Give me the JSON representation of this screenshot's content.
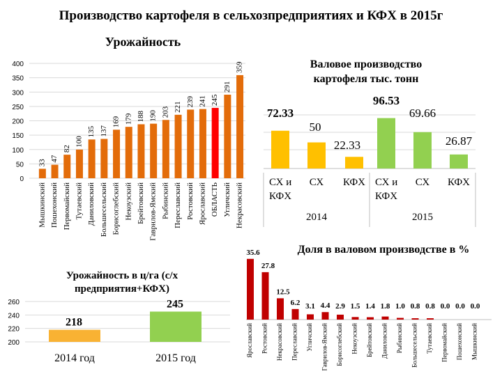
{
  "header": {
    "title": "Производство картофеля в сельхозпредприятиях и КФХ в 2015г",
    "subtitle": "Урожайность"
  },
  "colors": {
    "orange": "#E36C0A",
    "red": "#FF0000",
    "yellow": "#FFC000",
    "orange_light": "#F9B233",
    "green": "#92D050",
    "dark_red": "#C00000",
    "grid": "#D9D9D9"
  },
  "charts": {
    "gross_title": "Валовое производство картофеля тыс. тонн",
    "share_title": "Доля в валовом производстве в %",
    "yield_title": "Урожайность в ц/га (с/х предприятия+КФХ)"
  },
  "chart_data": [
    {
      "id": "yield_by_district",
      "type": "bar",
      "title": "Урожайность",
      "ylim": [
        0,
        400
      ],
      "yticks": [
        0,
        50,
        100,
        150,
        200,
        250,
        300,
        350,
        400
      ],
      "grid": true,
      "categories": [
        "Мышкинский",
        "Пошехонский",
        "Первомайский",
        "Тутаевский",
        "Даниловский",
        "Большесельский",
        "Борисоглебский",
        "Некоузский",
        "Брейтовский",
        "Гаврилов-Ямский",
        "Рыбинский",
        "Переславский",
        "Ростовский",
        "Ярославский",
        "ОБЛАСТЬ",
        "Угличский",
        "Некрасовский"
      ],
      "values": [
        33,
        47,
        82,
        100,
        135,
        137,
        169,
        179,
        188,
        190,
        203,
        221,
        239,
        241,
        245,
        291,
        359
      ],
      "highlight": "ОБЛАСТЬ"
    },
    {
      "id": "gross_production",
      "type": "bar",
      "title": "Валовое производство картофеля тыс. тонн",
      "groups": [
        "2014",
        "2015"
      ],
      "categories": [
        "СХ и КФХ",
        "СХ",
        "КФХ",
        "СХ и КФХ",
        "СХ",
        "КФХ"
      ],
      "values": [
        72.33,
        50,
        22.33,
        96.53,
        69.66,
        26.87
      ],
      "group_of_bar": [
        "2014",
        "2014",
        "2014",
        "2015",
        "2015",
        "2015"
      ],
      "labels": [
        "72.33",
        "50",
        "22.33",
        "96.53",
        "69.66",
        "26.87"
      ]
    },
    {
      "id": "share_of_gross",
      "type": "bar",
      "title": "Доля в валовом производстве в %",
      "categories": [
        "Ярославский",
        "Ростовский",
        "Некрасовский",
        "Переславский",
        "Угличский",
        "Гаврилов-Ямский",
        "Борисоглебский",
        "Некоузский",
        "Брейтовский",
        "Даниловский",
        "Рыбинский",
        "Большесельский",
        "Тутаевский",
        "Первомайский",
        "Пошехонский",
        "Мышкинский"
      ],
      "values": [
        35.6,
        27.8,
        12.5,
        6.2,
        3.1,
        4.4,
        2.9,
        1.5,
        1.4,
        1.8,
        1.0,
        0.8,
        0.8,
        0.0,
        0.0,
        0.0
      ],
      "labels": [
        "35.6",
        "27.8",
        "12.5",
        "6.2",
        "3.1",
        "4.4",
        "2.9",
        "1.5",
        "1.4",
        "1.8",
        "1.0",
        "0.8",
        "0.8",
        "0.0",
        "0.0",
        "0.0"
      ]
    },
    {
      "id": "yield_by_year",
      "type": "bar",
      "title": "Урожайность в ц/га (с/х предприятия+КФХ)",
      "ylim": [
        200,
        260
      ],
      "yticks": [
        200,
        220,
        240,
        260
      ],
      "categories": [
        "2014 год",
        "2015 год"
      ],
      "values": [
        218,
        245
      ],
      "labels": [
        "218",
        "245"
      ]
    }
  ]
}
